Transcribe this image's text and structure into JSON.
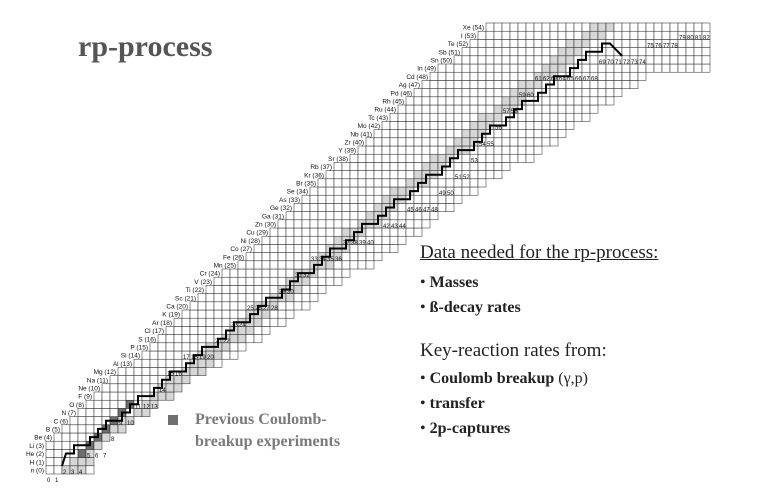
{
  "title": "rp-process",
  "legend": {
    "line1": "Previous Coulomb-",
    "line2": "breakup experiments"
  },
  "info": {
    "heading": "Data needed for the rp-process:",
    "needs": [
      {
        "label": "Masses"
      },
      {
        "label": "ß-decay rates"
      }
    ],
    "heading2": "Key-reaction rates from:",
    "reactions": [
      {
        "label": "Coulomb breakup",
        "suffix": " (γ,p)"
      },
      {
        "label": "transfer",
        "suffix": ""
      },
      {
        "label": "2p-captures",
        "suffix": ""
      }
    ]
  },
  "chart_data": {
    "type": "heatmap",
    "elements": [
      "n (0)",
      "H (1)",
      "He (2)",
      "Li (3)",
      "Be (4)",
      "B (5)",
      "C (6)",
      "N (7)",
      "O (8)",
      "F (9)",
      "Ne (10)",
      "Na (11)",
      "Mg (12)",
      "Al (13)",
      "Si (14)",
      "P (15)",
      "S (16)",
      "Cl (17)",
      "Ar (18)",
      "K (19)",
      "Ca (20)",
      "Sc (21)",
      "Ti (22)",
      "V (23)",
      "Cr (24)",
      "Mn (25)",
      "Fe (26)",
      "Co (27)",
      "Ni (28)",
      "Cu (29)",
      "Zn (30)",
      "Ga (31)",
      "Ge (32)",
      "As (33)",
      "Se (34)",
      "Br (35)",
      "Kr (36)",
      "Rb (37)",
      "Sr (38)",
      "Y (39)",
      "Zr (40)",
      "Nb (41)",
      "Mo (42)",
      "Tc (43)",
      "Ru (44)",
      "Rh (45)",
      "Pd (46)",
      "Ag (47)",
      "Cd (48)",
      "In (49)",
      "Sn (50)",
      "Sb (51)",
      "Te (52)",
      "I (53)",
      "Xe (54)"
    ],
    "neutron_labels": [
      {
        "text": "0",
        "n": 0,
        "z": 0
      },
      {
        "text": "1",
        "n": 1,
        "z": 0
      },
      {
        "text": "2",
        "n": 2,
        "z": 1
      },
      {
        "text": "3",
        "n": 3,
        "z": 1
      },
      {
        "text": "4",
        "n": 4,
        "z": 1
      },
      {
        "text": "5",
        "n": 5,
        "z": 3
      },
      {
        "text": "6",
        "n": 6,
        "z": 3
      },
      {
        "text": "7",
        "n": 7,
        "z": 3
      },
      {
        "text": "8",
        "n": 8,
        "z": 5
      },
      {
        "text": "9",
        "n": 9,
        "z": 7
      },
      {
        "text": "10",
        "n": 10,
        "z": 7
      },
      {
        "text": "11",
        "n": 11,
        "z": 9
      },
      {
        "text": "12",
        "n": 12,
        "z": 9
      },
      {
        "text": "13",
        "n": 13,
        "z": 9
      },
      {
        "text": "14",
        "n": 14,
        "z": 11
      },
      {
        "text": "15",
        "n": 15,
        "z": 13
      },
      {
        "text": "16",
        "n": 16,
        "z": 13
      },
      {
        "text": "17",
        "n": 17,
        "z": 15
      },
      {
        "text": "18",
        "n": 18,
        "z": 15
      },
      {
        "text": "19",
        "n": 19,
        "z": 15
      },
      {
        "text": "20",
        "n": 20,
        "z": 15
      },
      {
        "text": "21",
        "n": 21,
        "z": 17
      },
      {
        "text": "22",
        "n": 22,
        "z": 17
      },
      {
        "text": "23",
        "n": 23,
        "z": 19
      },
      {
        "text": "24",
        "n": 24,
        "z": 19
      },
      {
        "text": "25",
        "n": 25,
        "z": 21
      },
      {
        "text": "26",
        "n": 26,
        "z": 21
      },
      {
        "text": "27",
        "n": 27,
        "z": 21
      },
      {
        "text": "28",
        "n": 28,
        "z": 21
      },
      {
        "text": "29",
        "n": 29,
        "z": 23
      },
      {
        "text": "30",
        "n": 30,
        "z": 23
      },
      {
        "text": "31",
        "n": 31,
        "z": 25
      },
      {
        "text": "32",
        "n": 32,
        "z": 25
      },
      {
        "text": "33",
        "n": 33,
        "z": 27
      },
      {
        "text": "34",
        "n": 34,
        "z": 27
      },
      {
        "text": "35",
        "n": 35,
        "z": 27
      },
      {
        "text": "36",
        "n": 36,
        "z": 27
      },
      {
        "text": "37",
        "n": 37,
        "z": 29
      },
      {
        "text": "38",
        "n": 38,
        "z": 29
      },
      {
        "text": "39",
        "n": 39,
        "z": 29
      },
      {
        "text": "40",
        "n": 40,
        "z": 29
      },
      {
        "text": "42",
        "n": 42,
        "z": 31
      },
      {
        "text": "43",
        "n": 43,
        "z": 31
      },
      {
        "text": "44",
        "n": 44,
        "z": 31
      },
      {
        "text": "45",
        "n": 45,
        "z": 33
      },
      {
        "text": "46",
        "n": 46,
        "z": 33
      },
      {
        "text": "47",
        "n": 47,
        "z": 33
      },
      {
        "text": "48",
        "n": 48,
        "z": 33
      },
      {
        "text": "49",
        "n": 49,
        "z": 35
      },
      {
        "text": "50",
        "n": 50,
        "z": 35
      },
      {
        "text": "51",
        "n": 51,
        "z": 37
      },
      {
        "text": "52",
        "n": 52,
        "z": 37
      },
      {
        "text": "53",
        "n": 53,
        "z": 39
      },
      {
        "text": "54",
        "n": 54,
        "z": 41
      },
      {
        "text": "55",
        "n": 55,
        "z": 41
      },
      {
        "text": "56",
        "n": 56,
        "z": 43
      },
      {
        "text": "57",
        "n": 57,
        "z": 45
      },
      {
        "text": "58",
        "n": 58,
        "z": 45
      },
      {
        "text": "59",
        "n": 59,
        "z": 47
      },
      {
        "text": "60",
        "n": 60,
        "z": 47
      },
      {
        "text": "61",
        "n": 61,
        "z": 49
      },
      {
        "text": "62",
        "n": 62,
        "z": 49
      },
      {
        "text": "63",
        "n": 63,
        "z": 49
      },
      {
        "text": "64",
        "n": 64,
        "z": 49
      },
      {
        "text": "65",
        "n": 65,
        "z": 49
      },
      {
        "text": "66",
        "n": 66,
        "z": 49
      },
      {
        "text": "67",
        "n": 67,
        "z": 49
      },
      {
        "text": "68",
        "n": 68,
        "z": 49
      },
      {
        "text": "69",
        "n": 69,
        "z": 51
      },
      {
        "text": "70",
        "n": 70,
        "z": 51
      },
      {
        "text": "71",
        "n": 71,
        "z": 51
      },
      {
        "text": "72",
        "n": 72,
        "z": 51
      },
      {
        "text": "73",
        "n": 73,
        "z": 51
      },
      {
        "text": "74",
        "n": 74,
        "z": 51
      },
      {
        "text": "75",
        "n": 75,
        "z": 53
      },
      {
        "text": "76",
        "n": 76,
        "z": 53
      },
      {
        "text": "77",
        "n": 77,
        "z": 53
      },
      {
        "text": "78",
        "n": 78,
        "z": 53
      },
      {
        "text": "79",
        "n": 79,
        "z": 55
      },
      {
        "text": "80",
        "n": 80,
        "z": 55
      },
      {
        "text": "81",
        "n": 81,
        "z": 55
      },
      {
        "text": "82",
        "n": 82,
        "z": 55
      }
    ],
    "grid": {
      "z_min": 0,
      "z_max": 54,
      "n_min": 0,
      "n_max": 82
    },
    "stable_nuclei_shade": "#d6d6d6",
    "grid_color": "#222222",
    "coulomb_breakup_color": "#6e6e6e",
    "coulomb_breakup_nuclei": [
      {
        "n": 4,
        "z": 2
      },
      {
        "n": 5,
        "z": 3
      },
      {
        "n": 6,
        "z": 4
      },
      {
        "n": 7,
        "z": 5
      },
      {
        "n": 8,
        "z": 6
      },
      {
        "n": 9,
        "z": 7
      },
      {
        "n": 10,
        "z": 8
      },
      {
        "n": 8,
        "z": 4
      },
      {
        "n": 10,
        "z": 5
      },
      {
        "n": 7,
        "z": 3
      }
    ]
  }
}
